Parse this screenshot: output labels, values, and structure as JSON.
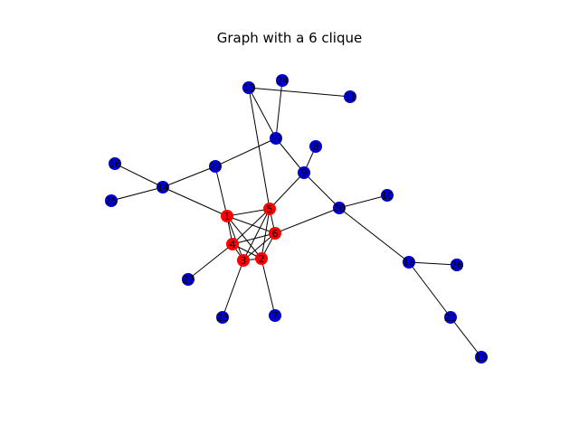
{
  "title": "Graph with a 6 clique",
  "colors": {
    "clique": "#ff0000",
    "other": "#0000cc",
    "edge": "#000000"
  },
  "nodes": [
    {
      "id": "1",
      "group": "clique"
    },
    {
      "id": "2",
      "group": "clique"
    },
    {
      "id": "3",
      "group": "clique"
    },
    {
      "id": "4",
      "group": "clique"
    },
    {
      "id": "5",
      "group": "clique"
    },
    {
      "id": "6",
      "group": "clique"
    },
    {
      "id": "7",
      "group": "other"
    },
    {
      "id": "8",
      "group": "other"
    },
    {
      "id": "9",
      "group": "other"
    },
    {
      "id": "10",
      "group": "other"
    },
    {
      "id": "11",
      "group": "other"
    },
    {
      "id": "12",
      "group": "other"
    },
    {
      "id": "13",
      "group": "other"
    },
    {
      "id": "14",
      "group": "other"
    },
    {
      "id": "15",
      "group": "other"
    },
    {
      "id": "16",
      "group": "other"
    },
    {
      "id": "17",
      "group": "other"
    },
    {
      "id": "18",
      "group": "other"
    },
    {
      "id": "19",
      "group": "other"
    },
    {
      "id": "20",
      "group": "other"
    },
    {
      "id": "21",
      "group": "other"
    },
    {
      "id": "22",
      "group": "other"
    },
    {
      "id": "23",
      "group": "other"
    },
    {
      "id": "24",
      "group": "other"
    },
    {
      "id": "25",
      "group": "other"
    },
    {
      "id": "26",
      "group": "other"
    },
    {
      "id": "27",
      "group": "other"
    }
  ],
  "edges": [
    [
      "1",
      "2"
    ],
    [
      "1",
      "3"
    ],
    [
      "1",
      "4"
    ],
    [
      "1",
      "5"
    ],
    [
      "1",
      "6"
    ],
    [
      "2",
      "3"
    ],
    [
      "2",
      "4"
    ],
    [
      "2",
      "5"
    ],
    [
      "2",
      "6"
    ],
    [
      "3",
      "4"
    ],
    [
      "3",
      "5"
    ],
    [
      "3",
      "6"
    ],
    [
      "4",
      "5"
    ],
    [
      "4",
      "6"
    ],
    [
      "5",
      "6"
    ],
    [
      "1",
      "14"
    ],
    [
      "1",
      "22"
    ],
    [
      "14",
      "16"
    ],
    [
      "14",
      "25"
    ],
    [
      "14",
      "22"
    ],
    [
      "22",
      "17"
    ],
    [
      "17",
      "24"
    ],
    [
      "17",
      "13"
    ],
    [
      "17",
      "9"
    ],
    [
      "9",
      "8"
    ],
    [
      "9",
      "5"
    ],
    [
      "5",
      "12"
    ],
    [
      "12",
      "11"
    ],
    [
      "9",
      "20"
    ],
    [
      "20",
      "10"
    ],
    [
      "20",
      "6"
    ],
    [
      "20",
      "18"
    ],
    [
      "18",
      "26"
    ],
    [
      "18",
      "21"
    ],
    [
      "21",
      "19"
    ],
    [
      "4",
      "27"
    ],
    [
      "3",
      "23"
    ],
    [
      "2",
      "7"
    ]
  ]
}
